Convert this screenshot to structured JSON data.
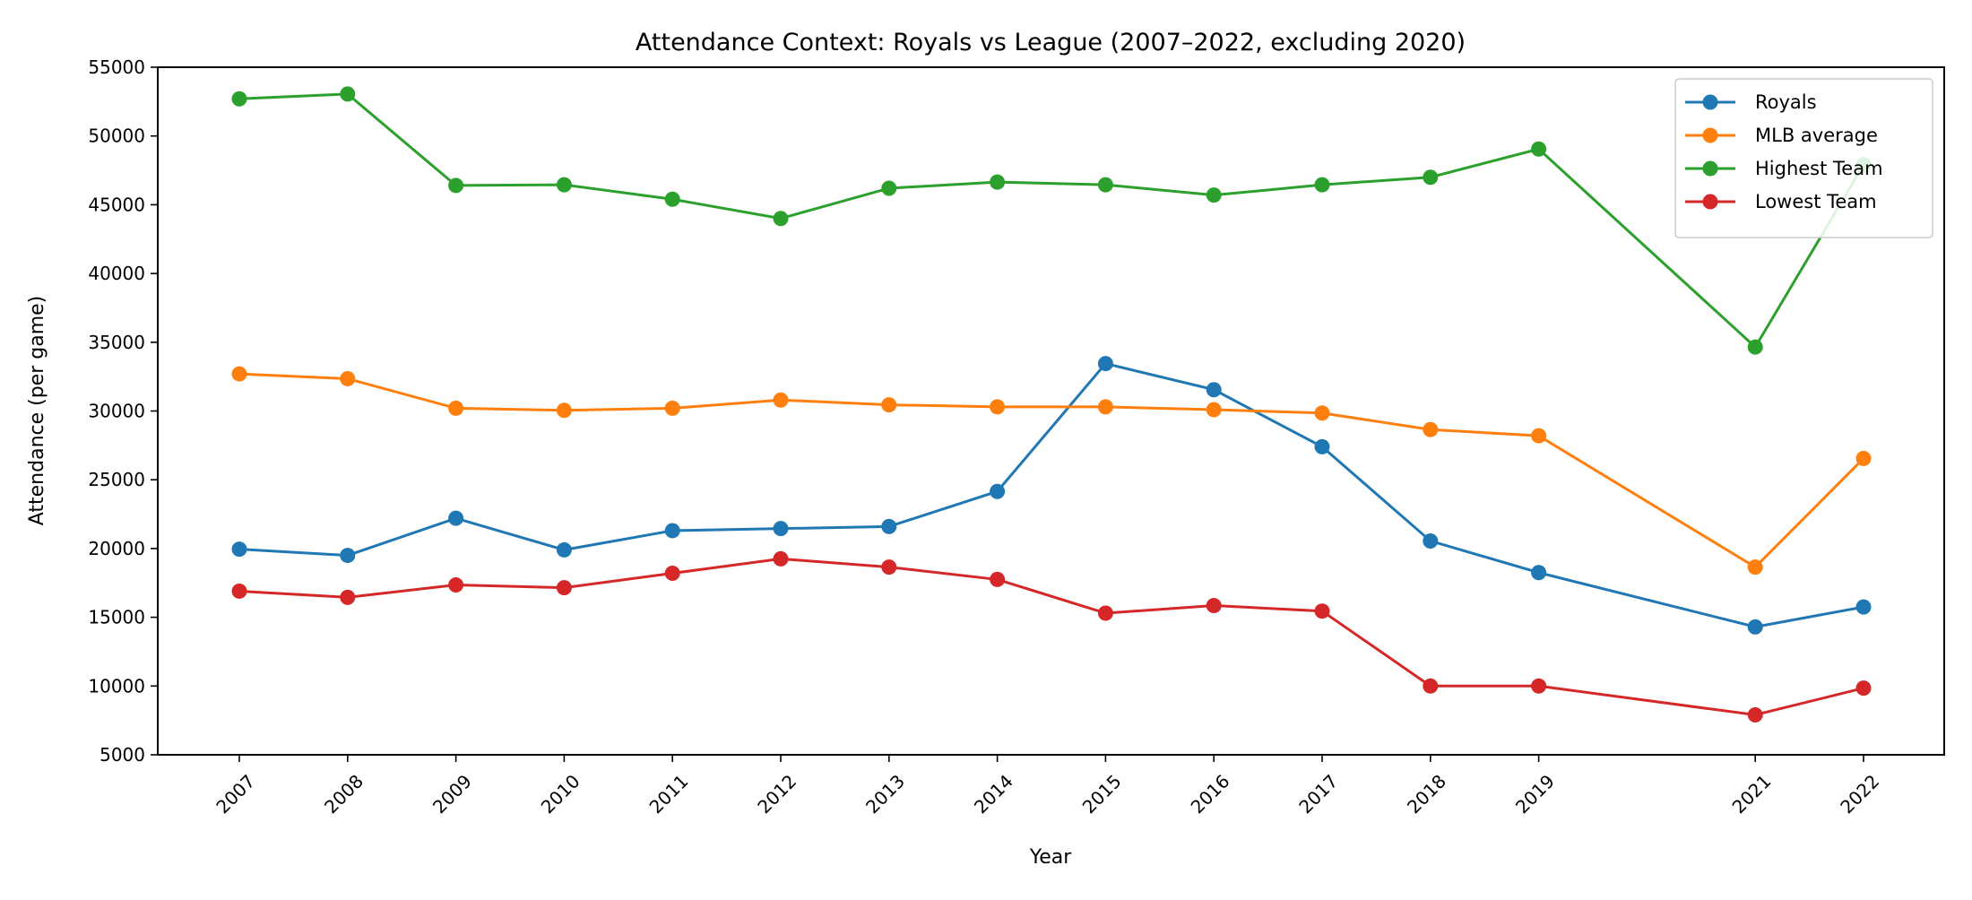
{
  "chart_data": {
    "type": "line",
    "title": "Attendance Context: Royals vs League (2007–2022, excluding 2020)",
    "xlabel": "Year",
    "ylabel": "Attendance (per game)",
    "x": [
      2007,
      2008,
      2009,
      2010,
      2011,
      2012,
      2013,
      2014,
      2015,
      2016,
      2017,
      2018,
      2019,
      2021,
      2022
    ],
    "x_tick_labels": [
      "2007",
      "2008",
      "2009",
      "2010",
      "2011",
      "2012",
      "2013",
      "2014",
      "2015",
      "2016",
      "2017",
      "2018",
      "2019",
      "2021",
      "2022"
    ],
    "ylim": [
      5000,
      55000
    ],
    "y_ticks": [
      5000,
      10000,
      15000,
      20000,
      25000,
      30000,
      35000,
      40000,
      45000,
      50000,
      55000
    ],
    "y_tick_labels": [
      "5000",
      "10000",
      "15000",
      "20000",
      "25000",
      "30000",
      "35000",
      "40000",
      "45000",
      "50000",
      "55000"
    ],
    "grid": false,
    "legend_position": "top-right",
    "series": [
      {
        "name": "Royals",
        "color": "#1f77b4",
        "values": [
          19950,
          19500,
          22200,
          19900,
          21300,
          21450,
          21600,
          24150,
          33450,
          31550,
          27400,
          20550,
          18250,
          14300,
          15750
        ]
      },
      {
        "name": "MLB average",
        "color": "#ff7f0e",
        "values": [
          32700,
          32350,
          30200,
          30050,
          30200,
          30800,
          30450,
          30300,
          30300,
          30100,
          29850,
          28650,
          28200,
          18650,
          26550
        ]
      },
      {
        "name": "Highest Team",
        "color": "#2ca02c",
        "values": [
          52700,
          53050,
          46400,
          46450,
          45400,
          44000,
          46200,
          46650,
          46450,
          45700,
          46450,
          47000,
          49050,
          34650,
          47900
        ]
      },
      {
        "name": "Lowest Team",
        "color": "#d62728",
        "values": [
          16900,
          16450,
          17350,
          17150,
          18200,
          19250,
          18650,
          17750,
          15300,
          15850,
          15450,
          10000,
          10000,
          7900,
          9850
        ]
      }
    ]
  }
}
